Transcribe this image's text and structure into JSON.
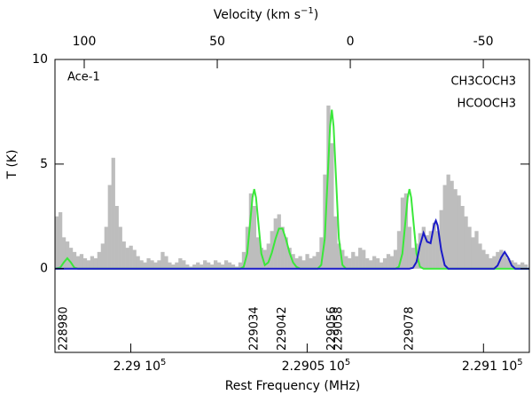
{
  "chart_data": {
    "type": "spectrum",
    "x2label": {
      "text": "Velocity (km s",
      "sup": "−1",
      "tail": ")"
    },
    "xlabel": "Rest Frequency (MHz)",
    "ylabel": "T (K)",
    "annotation": "Ace-1",
    "xlim": [
      228978.5,
      229113
    ],
    "xticks": [
      {
        "value": 229000,
        "label": "2.29 10",
        "exp": "5"
      },
      {
        "value": 229050,
        "label": "2.2905 10",
        "exp": "5"
      },
      {
        "value": 229100,
        "label": "2.291 10",
        "exp": "5"
      }
    ],
    "x2lim": [
      111,
      -67.3
    ],
    "x2ticks": [
      100,
      50,
      0,
      -50
    ],
    "ylim": [
      -4,
      10
    ],
    "yticks": [
      0,
      5,
      10
    ],
    "markers": [
      228980,
      229034,
      229042,
      229056,
      229058,
      229078
    ],
    "marker_color": "#3ae83a",
    "series": [
      {
        "name": "observed",
        "color": "#bdbdbd",
        "x": [
          228979,
          228980,
          228981,
          228982,
          228983,
          228984,
          228985,
          228986,
          228987,
          228988,
          228989,
          228990,
          228991,
          228992,
          228993,
          228994,
          228995,
          228996,
          228997,
          228998,
          228999,
          229000,
          229001,
          229002,
          229003,
          229004,
          229005,
          229006,
          229007,
          229008,
          229009,
          229010,
          229011,
          229012,
          229013,
          229014,
          229015,
          229016,
          229017,
          229018,
          229019,
          229020,
          229021,
          229022,
          229023,
          229024,
          229025,
          229026,
          229027,
          229028,
          229029,
          229030,
          229031,
          229032,
          229033,
          229034,
          229035,
          229036,
          229037,
          229038,
          229039,
          229040,
          229041,
          229042,
          229043,
          229044,
          229045,
          229046,
          229047,
          229048,
          229049,
          229050,
          229051,
          229052,
          229053,
          229054,
          229055,
          229056,
          229057,
          229058,
          229059,
          229060,
          229061,
          229062,
          229063,
          229064,
          229065,
          229066,
          229067,
          229068,
          229069,
          229070,
          229071,
          229072,
          229073,
          229074,
          229075,
          229076,
          229077,
          229078,
          229079,
          229080,
          229081,
          229082,
          229083,
          229084,
          229085,
          229086,
          229087,
          229088,
          229089,
          229090,
          229091,
          229092,
          229093,
          229094,
          229095,
          229096,
          229097,
          229098,
          229099,
          229100,
          229101,
          229102,
          229103,
          229104,
          229105,
          229106,
          229107,
          229108,
          229109,
          229110,
          229111,
          229112
        ],
        "values": [
          2.5,
          2.7,
          1.5,
          1.3,
          1.0,
          0.8,
          0.6,
          0.7,
          0.5,
          0.4,
          0.6,
          0.5,
          0.8,
          1.2,
          2.0,
          4.0,
          5.3,
          3.0,
          2.0,
          1.3,
          1.0,
          1.1,
          0.9,
          0.6,
          0.4,
          0.3,
          0.5,
          0.4,
          0.3,
          0.4,
          0.8,
          0.6,
          0.3,
          0.2,
          0.3,
          0.5,
          0.4,
          0.2,
          0.1,
          0.2,
          0.3,
          0.2,
          0.4,
          0.3,
          0.2,
          0.4,
          0.3,
          0.2,
          0.4,
          0.3,
          0.2,
          0.1,
          0.3,
          0.8,
          2.0,
          3.6,
          3.0,
          1.5,
          1.0,
          0.9,
          1.2,
          1.8,
          2.4,
          2.6,
          2.0,
          1.5,
          1.0,
          0.7,
          0.5,
          0.6,
          0.4,
          0.7,
          0.5,
          0.6,
          0.8,
          1.5,
          4.5,
          7.8,
          6.0,
          2.5,
          1.2,
          0.9,
          0.6,
          0.5,
          0.8,
          0.6,
          1.0,
          0.9,
          0.5,
          0.4,
          0.6,
          0.5,
          0.3,
          0.5,
          0.7,
          0.6,
          0.9,
          1.8,
          3.4,
          3.6,
          2.0,
          1.0,
          1.2,
          1.7,
          2.0,
          1.6,
          1.8,
          2.2,
          1.8,
          2.8,
          4.0,
          4.5,
          4.2,
          3.8,
          3.5,
          3.0,
          2.5,
          2.0,
          1.5,
          1.8,
          1.2,
          0.9,
          0.7,
          0.5,
          0.6,
          0.8,
          0.9,
          0.7,
          0.5,
          0.4,
          0.3,
          0.2,
          0.3,
          0.2
        ]
      },
      {
        "name": "CH3COCH3",
        "color": "#3ae83a",
        "x": [
          228978.5,
          228980,
          228981,
          228982,
          228983,
          228984,
          228985,
          229031,
          229032,
          229033,
          229034,
          229034.5,
          229035,
          229035.5,
          229036,
          229037,
          229038,
          229039,
          229040,
          229041,
          229042,
          229043,
          229044,
          229045,
          229046,
          229047,
          229048,
          229053,
          229054,
          229055,
          229056,
          229056.5,
          229057,
          229057.5,
          229058,
          229059,
          229060,
          229061,
          229075,
          229076,
          229077,
          229078,
          229078.5,
          229079,
          229079.5,
          229080,
          229081,
          229082,
          229083,
          229113
        ],
        "values": [
          0,
          0.05,
          0.3,
          0.5,
          0.3,
          0.05,
          0,
          0,
          0.09,
          0.72,
          2.5,
          3.4,
          3.8,
          3.4,
          2.5,
          0.73,
          0.17,
          0.3,
          0.77,
          1.41,
          1.92,
          1.92,
          1.41,
          0.77,
          0.3,
          0.08,
          0,
          0,
          0.18,
          1.44,
          5.0,
          6.8,
          7.6,
          6.8,
          5.0,
          1.44,
          0.18,
          0,
          0,
          0.09,
          0.72,
          2.5,
          3.4,
          3.8,
          3.4,
          2.5,
          0.72,
          0.09,
          0,
          0
        ]
      },
      {
        "name": "HCOOCH3",
        "color": "#1a1ac8",
        "x": [
          228978.5,
          229079,
          229080,
          229081,
          229082,
          229083,
          229084,
          229085,
          229086,
          229086.5,
          229087,
          229088,
          229089,
          229090,
          229103,
          229104,
          229105,
          229106,
          229107,
          229108,
          229109,
          229113
        ],
        "values": [
          0,
          0,
          0.04,
          0.32,
          1.12,
          1.71,
          1.29,
          1.22,
          2.11,
          2.3,
          2.07,
          0.9,
          0.17,
          0,
          0,
          0.15,
          0.53,
          0.8,
          0.53,
          0.15,
          0,
          0
        ]
      }
    ]
  }
}
